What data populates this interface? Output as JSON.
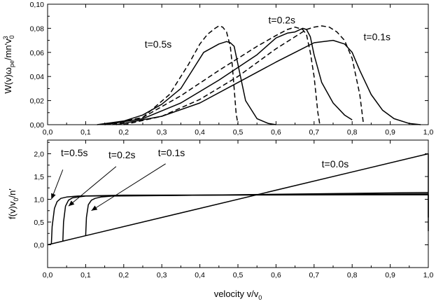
{
  "chart_data": [
    {
      "type": "line",
      "ylabel": "W(v)ω_pe/mn'v₀³",
      "ylabel_parts": [
        "W(v)ω",
        "pe",
        "/mn'v",
        "0",
        "3"
      ],
      "xlim": [
        0,
        1
      ],
      "ylim": [
        0,
        0.1
      ],
      "x_ticks": [
        "0,0",
        "0,1",
        "0,2",
        "0,3",
        "0,4",
        "0,5",
        "0,6",
        "0,7",
        "0,8",
        "0,9",
        "1,0"
      ],
      "y_ticks": [
        "0,00",
        "0,02",
        "0,04",
        "0,06",
        "0,08",
        "0,10"
      ],
      "series": [
        {
          "style": "solid",
          "x": [
            0.13,
            0.2,
            0.25,
            0.3,
            0.35,
            0.38,
            0.41,
            0.45,
            0.47,
            0.48,
            0.49,
            0.5,
            0.52,
            0.55,
            0.58,
            0.6
          ],
          "y": [
            0,
            0.003,
            0.008,
            0.017,
            0.03,
            0.045,
            0.06,
            0.067,
            0.069,
            0.068,
            0.065,
            0.05,
            0.02,
            0.005,
            0.001,
            0
          ]
        },
        {
          "style": "solid",
          "x": [
            0.15,
            0.25,
            0.35,
            0.45,
            0.55,
            0.6,
            0.63,
            0.65,
            0.67,
            0.68,
            0.69,
            0.7,
            0.72,
            0.75,
            0.78,
            0.8
          ],
          "y": [
            0,
            0.005,
            0.018,
            0.037,
            0.058,
            0.072,
            0.076,
            0.077,
            0.08,
            0.079,
            0.073,
            0.058,
            0.035,
            0.018,
            0.008,
            0.004
          ]
        },
        {
          "style": "solid",
          "x": [
            0.18,
            0.3,
            0.4,
            0.5,
            0.6,
            0.65,
            0.7,
            0.75,
            0.78,
            0.8,
            0.82,
            0.85,
            0.88,
            0.91,
            0.95,
            0.98
          ],
          "y": [
            0,
            0.007,
            0.018,
            0.035,
            0.052,
            0.06,
            0.068,
            0.07,
            0.067,
            0.06,
            0.045,
            0.025,
            0.012,
            0.005,
            0.001,
            0
          ]
        },
        {
          "style": "dashed",
          "x": [
            0.15,
            0.25,
            0.32,
            0.37,
            0.4,
            0.42,
            0.44,
            0.45,
            0.46,
            0.47,
            0.48,
            0.485,
            0.49,
            0.495,
            0.5
          ],
          "y": [
            0,
            0.006,
            0.025,
            0.05,
            0.067,
            0.075,
            0.08,
            0.082,
            0.081,
            0.077,
            0.065,
            0.05,
            0.03,
            0.01,
            0
          ]
        },
        {
          "style": "dashed",
          "x": [
            0.17,
            0.25,
            0.35,
            0.45,
            0.55,
            0.6,
            0.63,
            0.65,
            0.67,
            0.68,
            0.69,
            0.7,
            0.705,
            0.71,
            0.715
          ],
          "y": [
            0,
            0.006,
            0.024,
            0.045,
            0.065,
            0.074,
            0.079,
            0.081,
            0.079,
            0.075,
            0.06,
            0.04,
            0.025,
            0.01,
            0
          ]
        },
        {
          "style": "dashed",
          "x": [
            0.2,
            0.3,
            0.4,
            0.5,
            0.6,
            0.65,
            0.68,
            0.7,
            0.72,
            0.74,
            0.76,
            0.78,
            0.8,
            0.82,
            0.83
          ],
          "y": [
            0,
            0.007,
            0.021,
            0.04,
            0.063,
            0.073,
            0.079,
            0.081,
            0.082,
            0.081,
            0.077,
            0.07,
            0.055,
            0.025,
            0
          ]
        }
      ],
      "annotations": [
        {
          "text": "t=0.5s",
          "x": 0.255,
          "y": 0.064
        },
        {
          "text": "t=0.2s",
          "x": 0.58,
          "y": 0.084
        },
        {
          "text": "t=0.1s",
          "x": 0.83,
          "y": 0.07
        }
      ]
    },
    {
      "type": "line",
      "xlabel_parts": [
        "velocity v/v",
        "0"
      ],
      "ylabel_parts": [
        "f(v)v",
        "0",
        "/n'"
      ],
      "xlim": [
        0,
        1
      ],
      "ylim": [
        -0.5,
        2.3
      ],
      "x_ticks": [
        "0,0",
        "0,1",
        "0,2",
        "0,3",
        "0,4",
        "0,5",
        "0,6",
        "0,7",
        "0,8",
        "0,9",
        "1,0"
      ],
      "y_ticks": [
        "0,0",
        "0,5",
        "1,0",
        "1,5",
        "2,0"
      ],
      "series": [
        {
          "style": "solid",
          "name_text": "t=0.0s",
          "x": [
            0,
            1,
            1
          ],
          "y": [
            0,
            2,
            0.3
          ]
        },
        {
          "style": "solid",
          "x": [
            0.01,
            0.012,
            0.018,
            0.025,
            0.035,
            0.05,
            0.08,
            0.2,
            1,
            1
          ],
          "y": [
            0.02,
            0.4,
            0.8,
            0.95,
            1.02,
            1.05,
            1.07,
            1.09,
            1.1,
            0.6
          ]
        },
        {
          "style": "solid",
          "x": [
            0.04,
            0.042,
            0.047,
            0.055,
            0.065,
            0.08,
            0.1,
            0.2,
            1
          ],
          "y": [
            0.08,
            0.5,
            0.85,
            0.98,
            1.03,
            1.05,
            1.07,
            1.08,
            1.12
          ]
        },
        {
          "style": "solid",
          "x": [
            0.1,
            0.102,
            0.107,
            0.115,
            0.125,
            0.14,
            0.17,
            0.3,
            1
          ],
          "y": [
            0.2,
            0.6,
            0.88,
            0.98,
            1.02,
            1.05,
            1.07,
            1.08,
            1.15
          ]
        }
      ],
      "annotations": [
        {
          "text": "t=0.5s",
          "x": 0.035,
          "y": 1.95
        },
        {
          "text": "t=0.2s",
          "x": 0.16,
          "y": 1.9
        },
        {
          "text": "t=0.1s",
          "x": 0.29,
          "y": 1.95
        },
        {
          "text": "t=0.0s",
          "x": 0.72,
          "y": 1.7
        }
      ],
      "arrows": [
        {
          "from": [
            0.04,
            1.65
          ],
          "to": [
            0.01,
            1.0
          ]
        },
        {
          "from": [
            0.18,
            1.72
          ],
          "to": [
            0.055,
            0.85
          ]
        },
        {
          "from": [
            0.31,
            1.78
          ],
          "to": [
            0.115,
            0.75
          ]
        }
      ]
    }
  ]
}
